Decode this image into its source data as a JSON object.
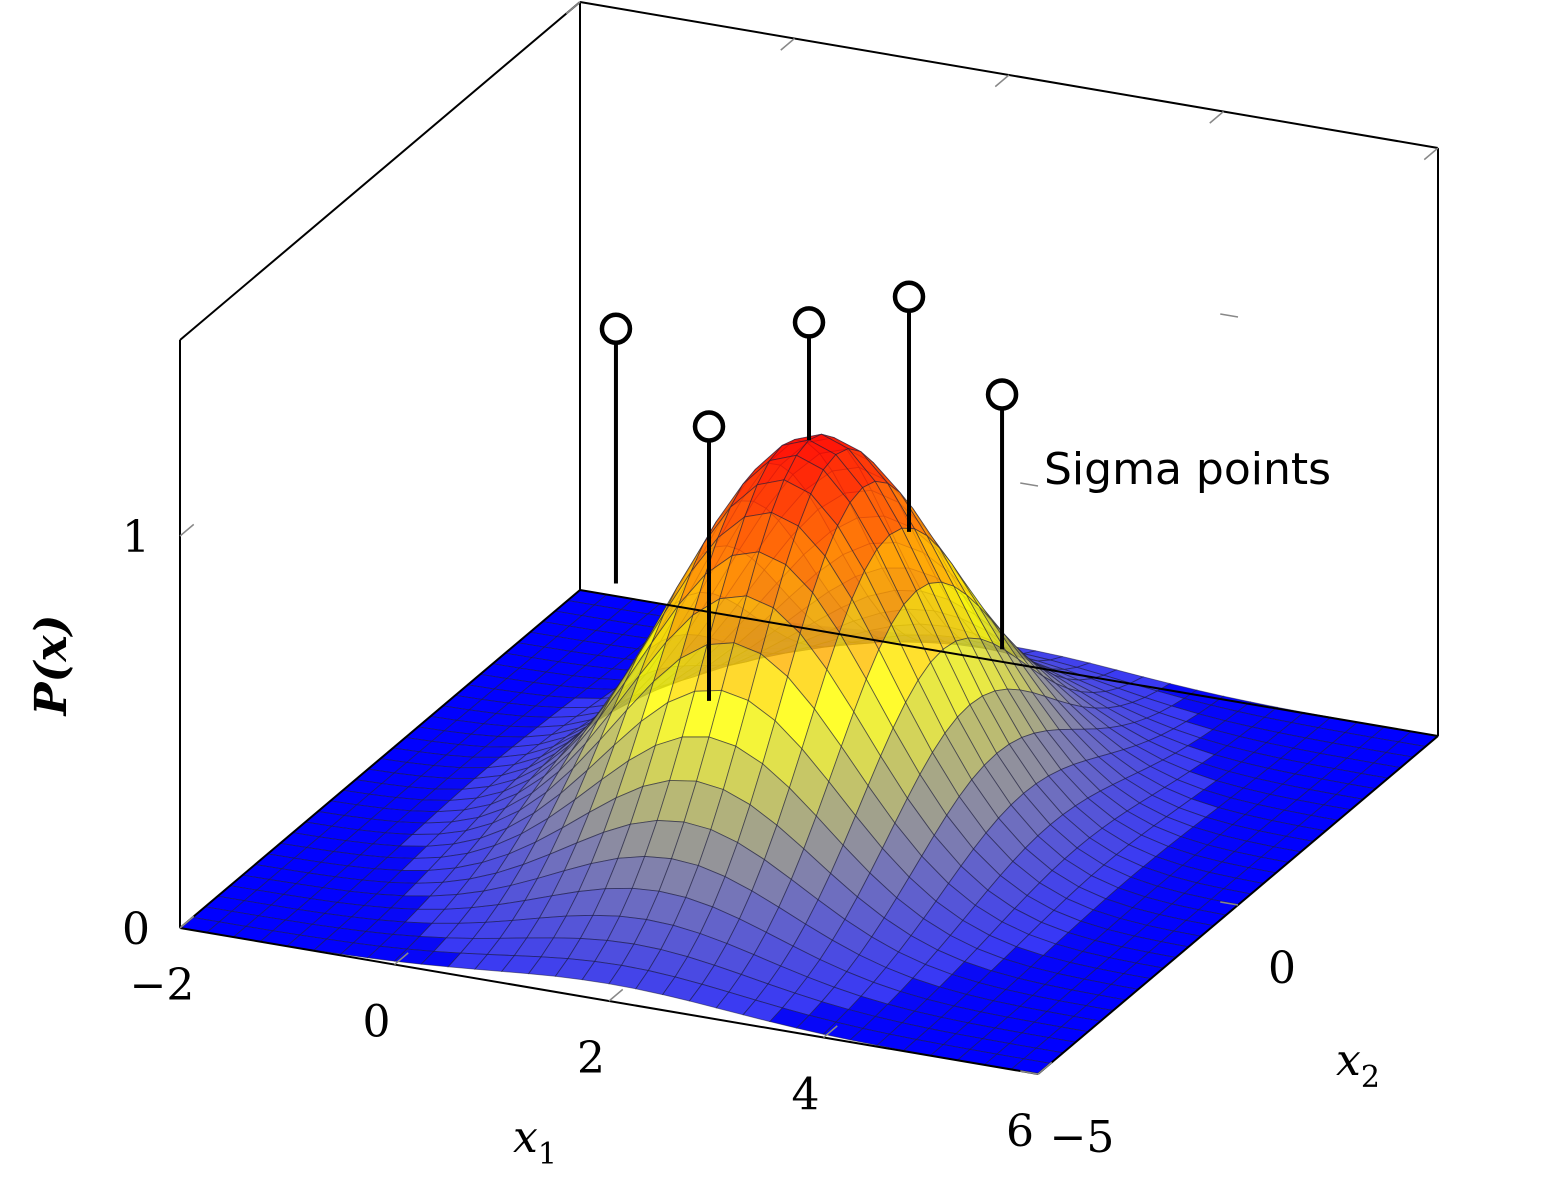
{
  "chart_data": {
    "type": "surface3d",
    "title": "",
    "xlabel_var": "x",
    "xlabel_sub": "1",
    "ylabel_var": "x",
    "ylabel_sub": "2",
    "zlabel": "P(x)",
    "xlim": [
      -2,
      6
    ],
    "ylim": [
      -5,
      5
    ],
    "zlim": [
      0,
      1.5
    ],
    "x_ticks": [
      "−2",
      "0",
      "2",
      "4",
      "6"
    ],
    "x_tick_values": [
      -2,
      0,
      2,
      4,
      6
    ],
    "y_ticks": [
      "−5",
      "0"
    ],
    "y_tick_values": [
      -5,
      0
    ],
    "z_ticks": [
      "0",
      "1"
    ],
    "z_tick_values": [
      0,
      1
    ],
    "surface": {
      "function": "gaussian",
      "mean": [
        2,
        0
      ],
      "sigma": [
        1.1,
        2.0
      ],
      "peak": 1,
      "grid": [
        33,
        33
      ]
    },
    "sigma_points": {
      "label": "Sigma points",
      "points": [
        {
          "x": 2,
          "y": 0,
          "z_base": 1.0,
          "z_top": 1.3
        },
        {
          "x": 0.2,
          "y": 0,
          "z_base": 0.55,
          "z_top": 1.2
        },
        {
          "x": 3.8,
          "y": 0,
          "z_base": 0.55,
          "z_top": 1.2
        },
        {
          "x": 2,
          "y": -2.5,
          "z_base": 0.55,
          "z_top": 1.25
        },
        {
          "x": 2,
          "y": 2.5,
          "z_base": 0.55,
          "z_top": 1.15
        }
      ]
    },
    "colors": {
      "low": "#0000ff",
      "mid": "#ffff00",
      "high": "#ff0000",
      "stems": "#000000"
    },
    "grid": false,
    "legend": "annotation-right"
  }
}
